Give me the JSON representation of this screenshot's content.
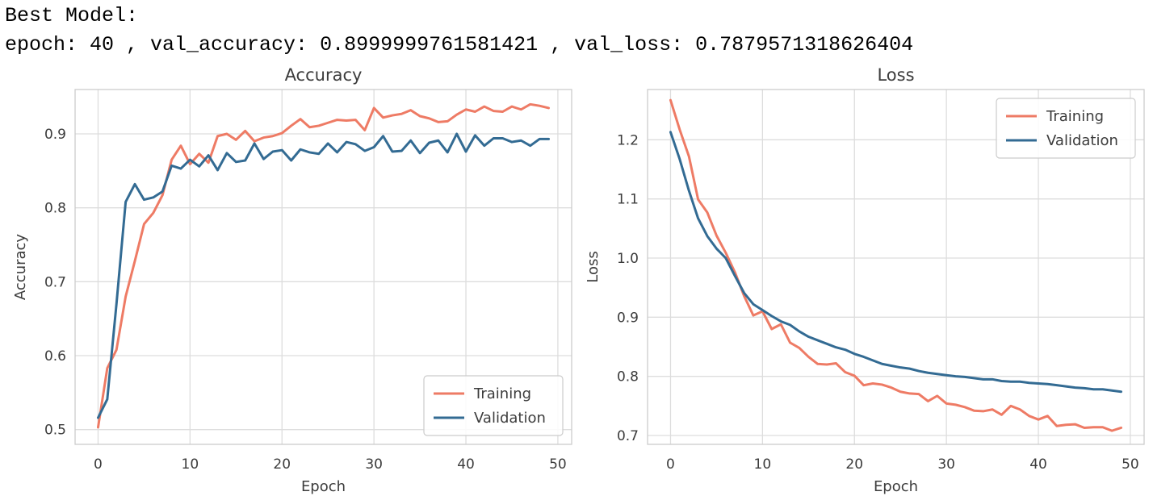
{
  "console": {
    "line1": "Best Model:",
    "line2": "epoch: 40 , val_accuracy: 0.8999999761581421 , val_loss: 0.7879571318626404"
  },
  "colors": {
    "training": "#ee7b65",
    "validation": "#336b93",
    "grid": "#dddddd",
    "frame": "#cccccc"
  },
  "chart_data": [
    {
      "type": "line",
      "title": "Accuracy",
      "xlabel": "Epoch",
      "ylabel": "Accuracy",
      "xlim": [
        -2.5,
        51.5
      ],
      "ylim": [
        0.48,
        0.96
      ],
      "xticks": [
        0,
        10,
        20,
        30,
        40,
        50
      ],
      "yticks": [
        0.5,
        0.6,
        0.7,
        0.8,
        0.9
      ],
      "ytick_labels": [
        "0.5",
        "0.6",
        "0.7",
        "0.8",
        "0.9"
      ],
      "grid": true,
      "legend": "lower-right",
      "x": [
        0,
        1,
        2,
        3,
        4,
        5,
        6,
        7,
        8,
        9,
        10,
        11,
        12,
        13,
        14,
        15,
        16,
        17,
        18,
        19,
        20,
        21,
        22,
        23,
        24,
        25,
        26,
        27,
        28,
        29,
        30,
        31,
        32,
        33,
        34,
        35,
        36,
        37,
        38,
        39,
        40,
        41,
        42,
        43,
        44,
        45,
        46,
        47,
        48,
        49
      ],
      "series": [
        {
          "name": "Training",
          "values": [
            0.503,
            0.583,
            0.608,
            0.68,
            0.728,
            0.778,
            0.793,
            0.817,
            0.865,
            0.884,
            0.859,
            0.873,
            0.861,
            0.897,
            0.9,
            0.892,
            0.904,
            0.89,
            0.895,
            0.897,
            0.901,
            0.911,
            0.92,
            0.909,
            0.911,
            0.915,
            0.919,
            0.918,
            0.919,
            0.905,
            0.935,
            0.922,
            0.925,
            0.927,
            0.932,
            0.924,
            0.921,
            0.916,
            0.917,
            0.926,
            0.933,
            0.93,
            0.937,
            0.931,
            0.93,
            0.937,
            0.933,
            0.94,
            0.938,
            0.935
          ]
        },
        {
          "name": "Validation",
          "values": [
            0.516,
            0.541,
            0.67,
            0.808,
            0.832,
            0.811,
            0.814,
            0.822,
            0.857,
            0.853,
            0.865,
            0.856,
            0.871,
            0.851,
            0.874,
            0.862,
            0.864,
            0.887,
            0.866,
            0.876,
            0.878,
            0.864,
            0.879,
            0.875,
            0.873,
            0.887,
            0.875,
            0.889,
            0.886,
            0.877,
            0.882,
            0.897,
            0.876,
            0.877,
            0.891,
            0.874,
            0.888,
            0.891,
            0.875,
            0.9,
            0.876,
            0.898,
            0.884,
            0.894,
            0.894,
            0.889,
            0.891,
            0.884,
            0.893,
            0.893
          ]
        }
      ]
    },
    {
      "type": "line",
      "title": "Loss",
      "xlabel": "Epoch",
      "ylabel": "Loss",
      "xlim": [
        -2.5,
        51.5
      ],
      "ylim": [
        0.685,
        1.285
      ],
      "xticks": [
        0,
        10,
        20,
        30,
        40,
        50
      ],
      "yticks": [
        0.7,
        0.8,
        0.9,
        1.0,
        1.1,
        1.2
      ],
      "ytick_labels": [
        "0.7",
        "0.8",
        "0.9",
        "1.0",
        "1.1",
        "1.2"
      ],
      "grid": true,
      "legend": "upper-right",
      "x": [
        0,
        1,
        2,
        3,
        4,
        5,
        6,
        7,
        8,
        9,
        10,
        11,
        12,
        13,
        14,
        15,
        16,
        17,
        18,
        19,
        20,
        21,
        22,
        23,
        24,
        25,
        26,
        27,
        28,
        29,
        30,
        31,
        32,
        33,
        34,
        35,
        36,
        37,
        38,
        39,
        40,
        41,
        42,
        43,
        44,
        45,
        46,
        47,
        48,
        49
      ],
      "series": [
        {
          "name": "Training",
          "values": [
            1.267,
            1.217,
            1.172,
            1.099,
            1.077,
            1.038,
            1.009,
            0.976,
            0.936,
            0.903,
            0.91,
            0.88,
            0.888,
            0.857,
            0.848,
            0.833,
            0.821,
            0.82,
            0.822,
            0.807,
            0.801,
            0.785,
            0.788,
            0.786,
            0.781,
            0.774,
            0.771,
            0.77,
            0.758,
            0.767,
            0.754,
            0.752,
            0.748,
            0.742,
            0.741,
            0.744,
            0.735,
            0.75,
            0.744,
            0.733,
            0.727,
            0.733,
            0.716,
            0.718,
            0.719,
            0.713,
            0.714,
            0.714,
            0.708,
            0.713
          ]
        },
        {
          "name": "Validation",
          "values": [
            1.213,
            1.167,
            1.114,
            1.067,
            1.037,
            1.016,
            1.0,
            0.97,
            0.941,
            0.922,
            0.912,
            0.902,
            0.893,
            0.887,
            0.876,
            0.867,
            0.861,
            0.855,
            0.849,
            0.845,
            0.838,
            0.833,
            0.827,
            0.821,
            0.818,
            0.815,
            0.813,
            0.809,
            0.806,
            0.804,
            0.802,
            0.8,
            0.799,
            0.797,
            0.795,
            0.795,
            0.792,
            0.791,
            0.791,
            0.789,
            0.788,
            0.787,
            0.785,
            0.783,
            0.781,
            0.78,
            0.778,
            0.778,
            0.776,
            0.774
          ]
        }
      ]
    }
  ]
}
